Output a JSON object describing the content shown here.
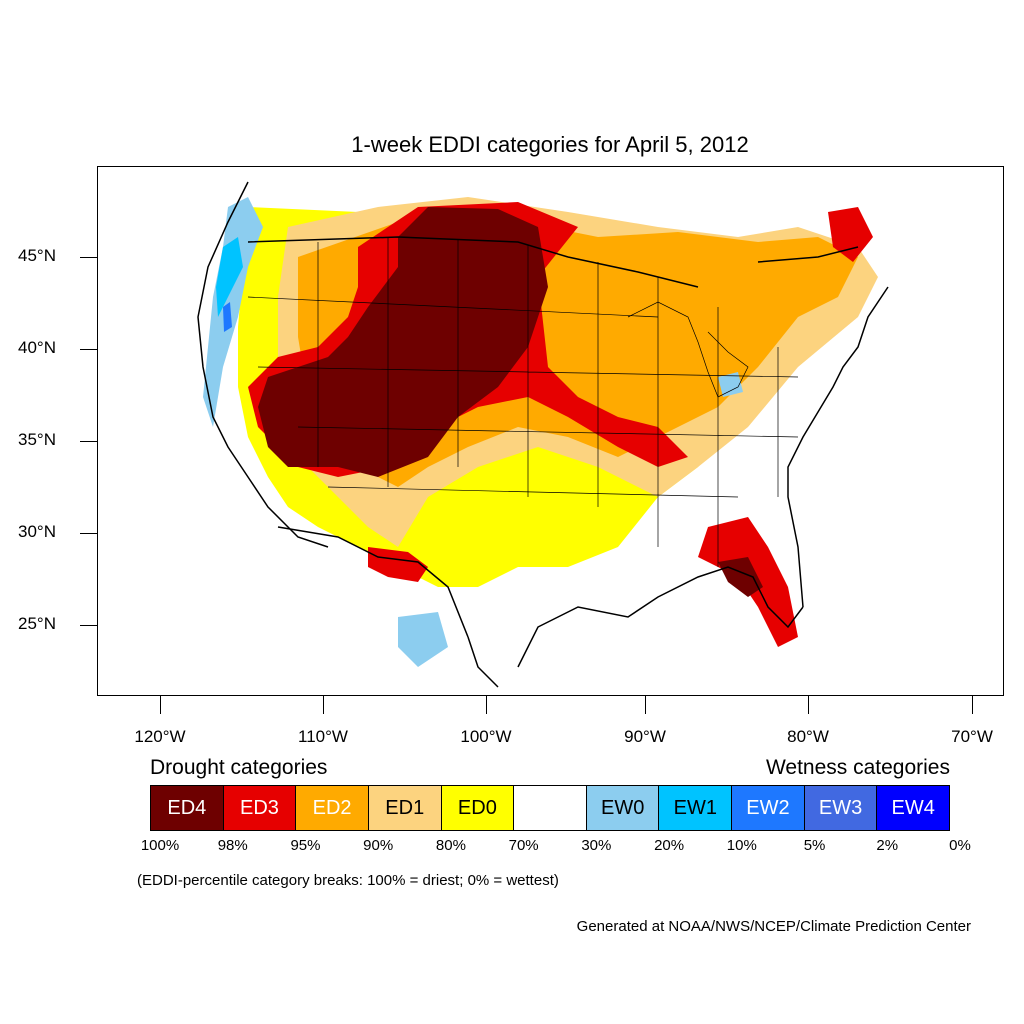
{
  "title": "1-week EDDI categories for April 5, 2012",
  "lat_labels": [
    "45°N",
    "40°N",
    "35°N",
    "30°N",
    "25°N"
  ],
  "lon_labels": [
    "120°W",
    "110°W",
    "100°W",
    "90°W",
    "80°W",
    "70°W"
  ],
  "legend": {
    "drought_heading": "Drought categories",
    "wetness_heading": "Wetness categories",
    "categories": [
      {
        "label": "ED4",
        "color": "#6e0000",
        "text_color": "#ffffff"
      },
      {
        "label": "ED3",
        "color": "#e60000",
        "text_color": "#ffffff"
      },
      {
        "label": "ED2",
        "color": "#ffaa00",
        "text_color": "#ffffff"
      },
      {
        "label": "ED1",
        "color": "#fcd37f",
        "text_color": "#000000"
      },
      {
        "label": "ED0",
        "color": "#ffff00",
        "text_color": "#000000"
      },
      {
        "label": "",
        "color": "#ffffff",
        "text_color": "#000000"
      },
      {
        "label": "EW0",
        "color": "#8ccdef",
        "text_color": "#000000"
      },
      {
        "label": "EW1",
        "color": "#00c3ff",
        "text_color": "#000000"
      },
      {
        "label": "EW2",
        "color": "#1e78ff",
        "text_color": "#ffffff"
      },
      {
        "label": "EW3",
        "color": "#4169e1",
        "text_color": "#ffffff"
      },
      {
        "label": "EW4",
        "color": "#0000ff",
        "text_color": "#ffffff"
      }
    ],
    "percentiles": [
      "100%",
      "98%",
      "95%",
      "90%",
      "80%",
      "70%",
      "30%",
      "20%",
      "10%",
      "5%",
      "2%",
      "0%"
    ]
  },
  "breaks_note": "(EDDI-percentile category breaks: 100% = driest; 0% = wettest)",
  "credit": "Generated at NOAA/NWS/NCEP/Climate Prediction Center"
}
